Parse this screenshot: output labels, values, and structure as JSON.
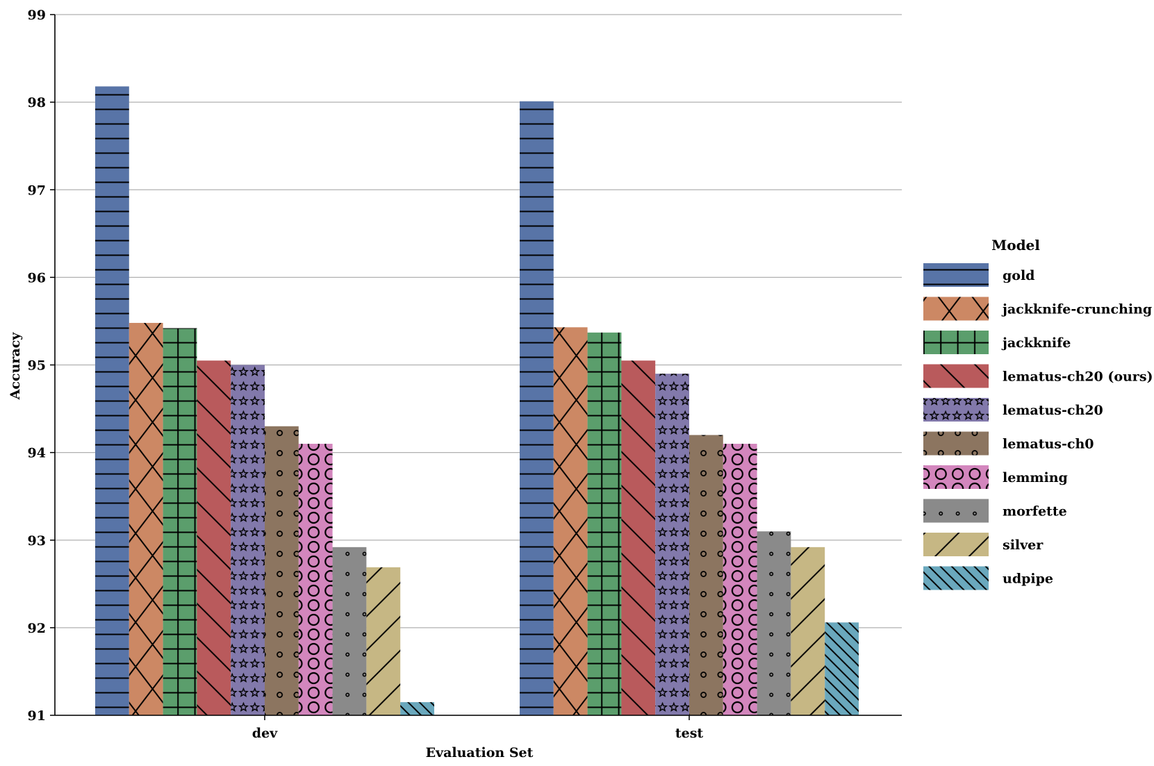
{
  "chart_data": {
    "type": "bar",
    "title": "",
    "xlabel": "Evaluation Set",
    "ylabel": "Accuracy",
    "ylim": [
      91,
      99
    ],
    "yticks": [
      91,
      92,
      93,
      94,
      95,
      96,
      97,
      98,
      99
    ],
    "grid": true,
    "legend_title": "Model",
    "legend_position": "right",
    "categories": [
      "dev",
      "test"
    ],
    "series": [
      {
        "name": "gold",
        "color": "#5874a7",
        "pattern": "horizontal-lines",
        "values": [
          98.18,
          98.01
        ]
      },
      {
        "name": "jackknife-crunching",
        "color": "#cc8864",
        "pattern": "crosshatch",
        "values": [
          95.48,
          95.43
        ]
      },
      {
        "name": "jackknife",
        "color": "#5b9e6c",
        "pattern": "grid",
        "values": [
          95.42,
          95.37
        ]
      },
      {
        "name": "lematus-ch20 (ours)",
        "color": "#b95a5c",
        "pattern": "backslash",
        "values": [
          95.05,
          95.05
        ]
      },
      {
        "name": "lematus-ch20",
        "color": "#8279ab",
        "pattern": "stars",
        "values": [
          95.0,
          94.9
        ]
      },
      {
        "name": "lematus-ch0",
        "color": "#8c7560",
        "pattern": "small-circles",
        "values": [
          94.3,
          94.2
        ]
      },
      {
        "name": "lemming",
        "color": "#d386bd",
        "pattern": "large-circles",
        "values": [
          94.1,
          94.1
        ]
      },
      {
        "name": "morfette",
        "color": "#8a8a8a",
        "pattern": "dots",
        "values": [
          92.92,
          93.1
        ]
      },
      {
        "name": "silver",
        "color": "#c6b784",
        "pattern": "slash",
        "values": [
          92.69,
          92.92
        ]
      },
      {
        "name": "udpipe",
        "color": "#6aa8bd",
        "pattern": "backslash-dense",
        "values": [
          91.15,
          92.06
        ]
      }
    ]
  }
}
